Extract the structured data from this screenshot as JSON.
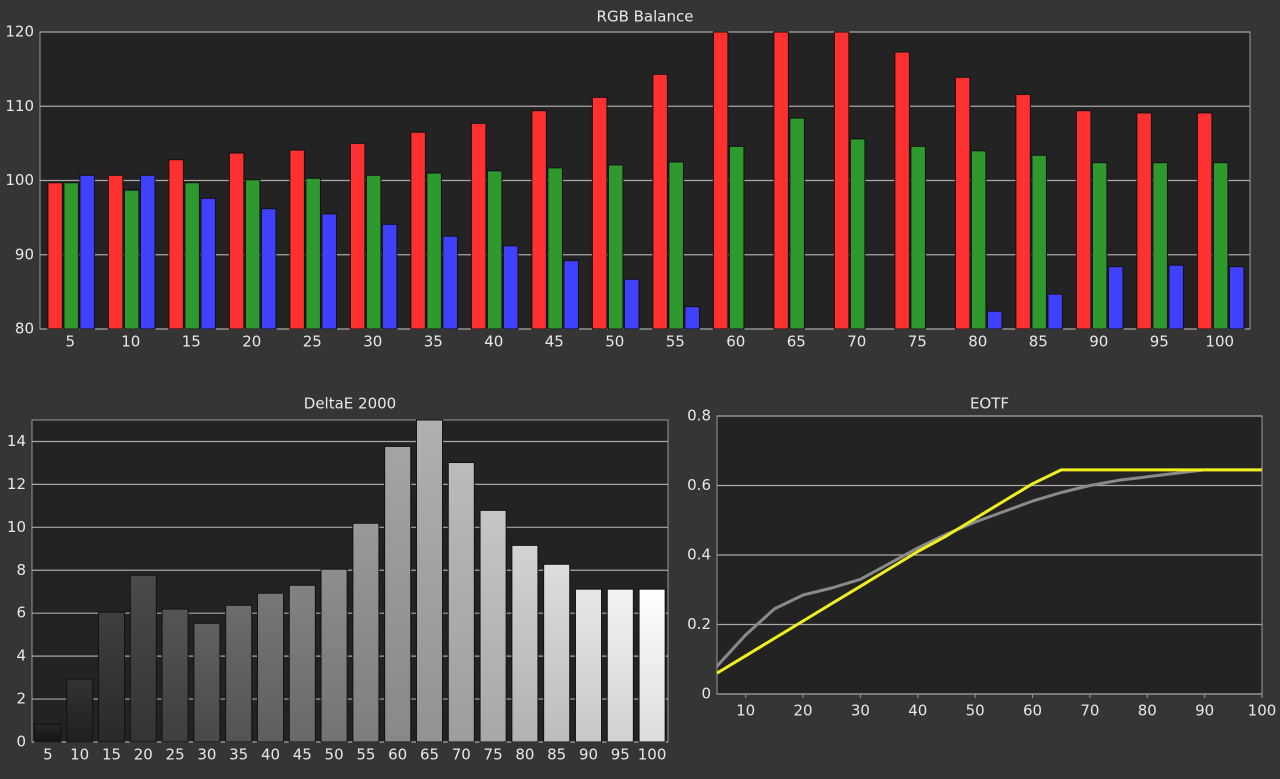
{
  "chart_data": [
    {
      "type": "bar",
      "title": "RGB Balance",
      "categories": [
        "5",
        "10",
        "15",
        "20",
        "25",
        "30",
        "35",
        "40",
        "45",
        "50",
        "55",
        "60",
        "65",
        "70",
        "75",
        "80",
        "85",
        "90",
        "95",
        "100"
      ],
      "series": [
        {
          "color": "#ff3030",
          "values": [
            99.7,
            100.7,
            102.8,
            103.7,
            104.1,
            105.0,
            106.5,
            107.7,
            109.4,
            111.2,
            114.3,
            120,
            120,
            120,
            117.3,
            113.9,
            111.6,
            109.4,
            109.1,
            109.1
          ]
        },
        {
          "color": "#2e9a2e",
          "values": [
            99.7,
            98.7,
            99.7,
            100.1,
            100.3,
            100.7,
            101.0,
            101.3,
            101.7,
            102.1,
            102.5,
            104.6,
            108.4,
            105.6,
            104.6,
            104.0,
            103.4,
            102.4,
            102.4,
            102.4
          ]
        },
        {
          "color": "#4040ff",
          "values": [
            100.7,
            100.7,
            97.6,
            96.2,
            95.5,
            94.1,
            92.5,
            91.2,
            89.2,
            86.7,
            83.0,
            null,
            null,
            null,
            null,
            82.4,
            84.7,
            88.4,
            88.6,
            88.4
          ]
        }
      ],
      "ylim": [
        80,
        120
      ],
      "yticks": [
        80,
        90,
        100,
        110,
        120
      ],
      "grid": true
    },
    {
      "type": "bar",
      "title": "DeltaE 2000",
      "categories": [
        "5",
        "10",
        "15",
        "20",
        "25",
        "30",
        "35",
        "40",
        "45",
        "50",
        "55",
        "60",
        "65",
        "70",
        "75",
        "80",
        "85",
        "90",
        "95",
        "100"
      ],
      "values": [
        0.84,
        2.93,
        6.05,
        7.77,
        6.19,
        5.53,
        6.37,
        6.93,
        7.3,
        8.05,
        10.19,
        13.77,
        15,
        13.02,
        10.79,
        9.16,
        8.28,
        7.12,
        7.12,
        7.12
      ],
      "ylim": [
        0,
        15
      ],
      "yticks": [
        0,
        2,
        4,
        6,
        8,
        10,
        12,
        14
      ],
      "grid": true
    },
    {
      "type": "line",
      "title": "EOTF",
      "x": [
        5,
        10,
        15,
        20,
        25,
        30,
        35,
        40,
        45,
        50,
        55,
        60,
        65,
        70,
        75,
        80,
        85,
        90,
        95,
        100
      ],
      "series": [
        {
          "color": "#8a8a8a",
          "values": [
            0.08,
            0.17,
            0.245,
            0.285,
            0.305,
            0.33,
            0.375,
            0.42,
            0.46,
            0.495,
            0.525,
            0.555,
            0.58,
            0.6,
            0.615,
            0.625,
            0.635,
            0.645,
            0.645,
            0.645
          ]
        },
        {
          "color": "#f0f020",
          "values": [
            0.06,
            0.11,
            0.16,
            0.21,
            0.26,
            0.31,
            0.36,
            0.41,
            0.455,
            0.505,
            0.555,
            0.605,
            0.645,
            0.645,
            0.645,
            0.645,
            0.645,
            0.645,
            0.645,
            0.645
          ]
        }
      ],
      "xlim": [
        5,
        100
      ],
      "xticks": [
        10,
        20,
        30,
        40,
        50,
        60,
        70,
        80,
        90,
        100
      ],
      "ylim": [
        0,
        0.8
      ],
      "yticks": [
        0,
        0.2,
        0.4,
        0.6,
        0.8
      ],
      "grid": true
    }
  ]
}
